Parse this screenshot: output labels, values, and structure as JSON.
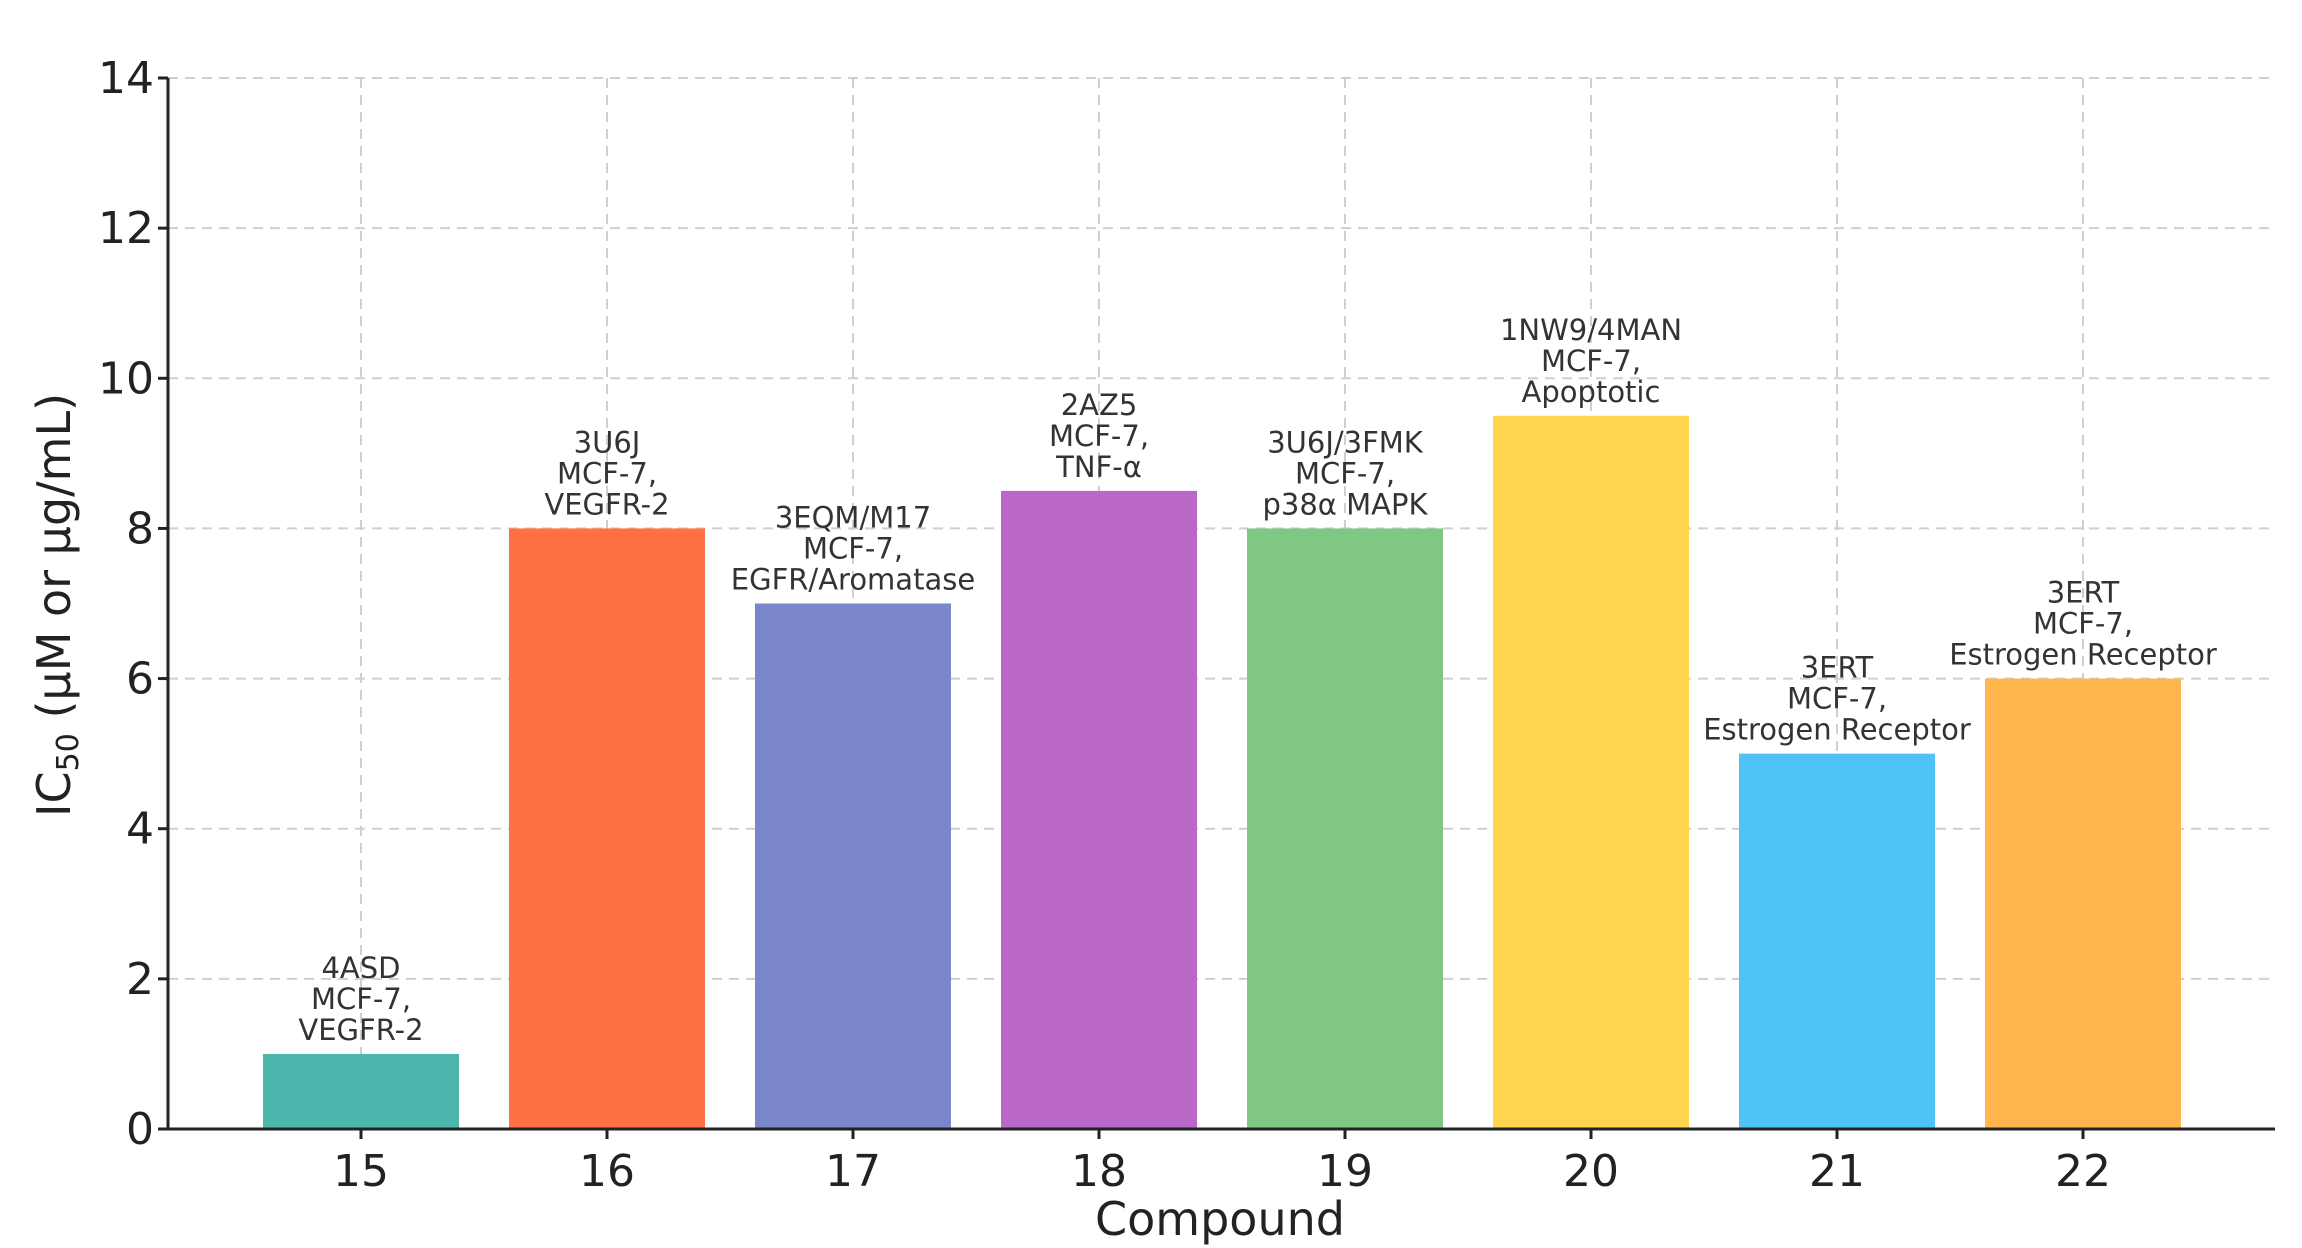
{
  "chart_data": {
    "type": "bar",
    "title": "",
    "xlabel": "Compound",
    "ylabel_main": "IC",
    "ylabel_sub": "50",
    "ylabel_rest": " (µM or µg/mL)",
    "ylim": [
      0,
      14
    ],
    "yticks": [
      0,
      2,
      4,
      6,
      8,
      10,
      12,
      14
    ],
    "grid": true,
    "categories": [
      "15",
      "16",
      "17",
      "18",
      "19",
      "20",
      "21",
      "22"
    ],
    "values": [
      1,
      8,
      7,
      8.5,
      8,
      9.5,
      5,
      6
    ],
    "colors": [
      "#4db6ac",
      "#ff7043",
      "#7986cb",
      "#ba68c8",
      "#81c784",
      "#ffd54f",
      "#4fc3f7",
      "#ffb74d"
    ],
    "annotations": [
      [
        "4ASD",
        "MCF-7,",
        "VEGFR-2"
      ],
      [
        "3U6J",
        "MCF-7,",
        "VEGFR-2"
      ],
      [
        "3EQM/M17",
        "MCF-7,",
        "EGFR/Aromatase"
      ],
      [
        "2AZ5",
        "MCF-7,",
        "TNF-α"
      ],
      [
        "3U6J/3FMK",
        "MCF-7,",
        "p38α MAPK"
      ],
      [
        "1NW9/4MAN",
        "MCF-7,",
        "Apoptotic"
      ],
      [
        "3ERT",
        "MCF-7,",
        "Estrogen Receptor"
      ],
      [
        "3ERT",
        "MCF-7,",
        "Estrogen Receptor"
      ]
    ]
  }
}
